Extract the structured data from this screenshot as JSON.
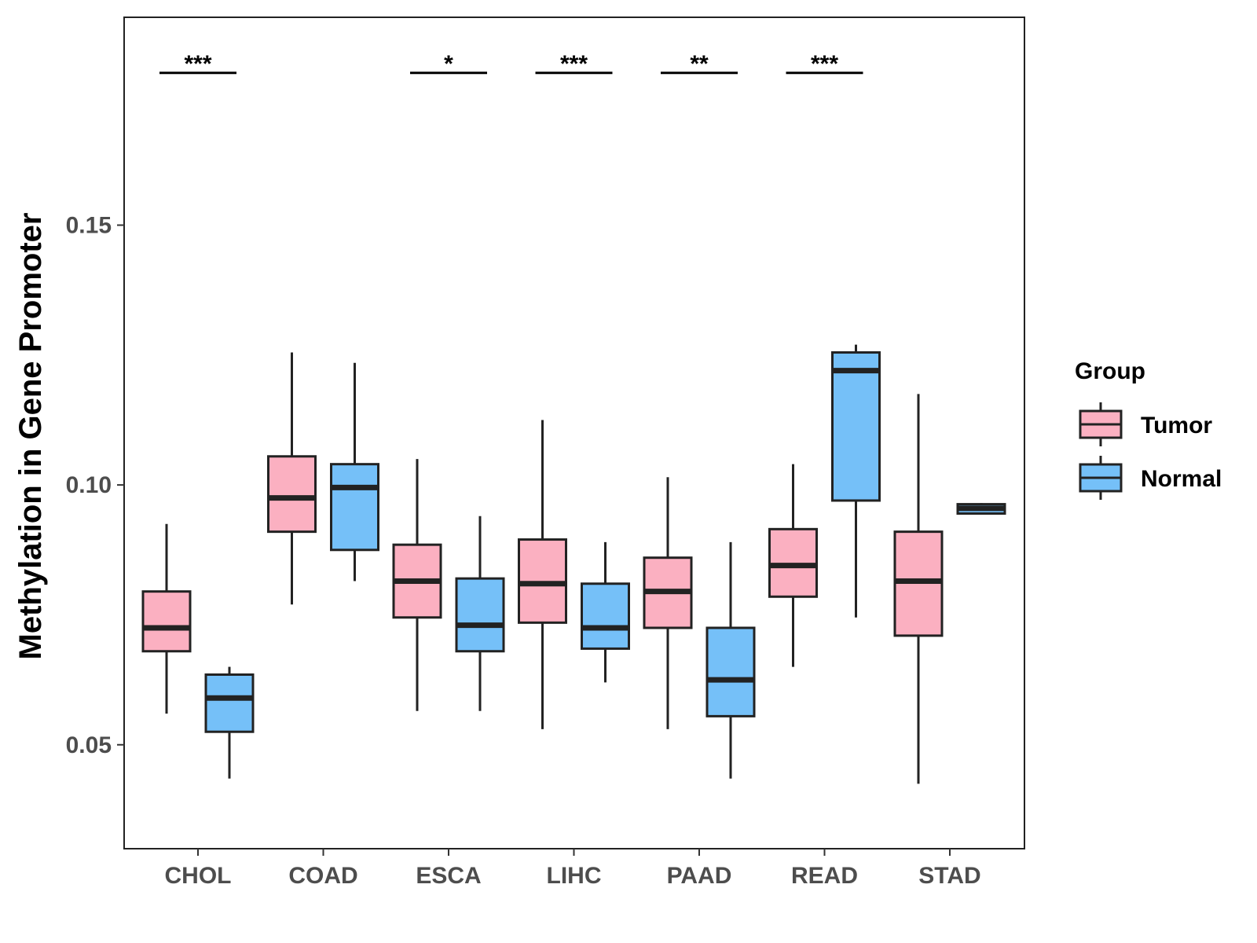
{
  "chart_data": {
    "type": "boxplot",
    "title": "",
    "xlabel": "",
    "ylabel": "Methylation in Gene Promoter",
    "ylim": [
      0.03,
      0.19
    ],
    "yticks": [
      0.05,
      0.1,
      0.15
    ],
    "ytick_labels": [
      "0.05",
      "0.10",
      "0.15"
    ],
    "grid": false,
    "categories": [
      "CHOL",
      "COAD",
      "ESCA",
      "LIHC",
      "PAAD",
      "READ",
      "STAD"
    ],
    "legend": {
      "title": "Group",
      "position": "right",
      "entries": [
        {
          "name": "Tumor",
          "color": "#FBB0C1"
        },
        {
          "name": "Normal",
          "color": "#75C0F8"
        }
      ]
    },
    "series": [
      {
        "name": "Tumor",
        "color": "#FBB0C1",
        "boxes": [
          {
            "category": "CHOL",
            "whisker_low": 0.056,
            "q1": 0.068,
            "median": 0.0725,
            "q3": 0.0795,
            "whisker_high": 0.0925
          },
          {
            "category": "COAD",
            "whisker_low": 0.077,
            "q1": 0.091,
            "median": 0.0975,
            "q3": 0.1055,
            "whisker_high": 0.1255
          },
          {
            "category": "ESCA",
            "whisker_low": 0.0565,
            "q1": 0.0745,
            "median": 0.0815,
            "q3": 0.0885,
            "whisker_high": 0.105
          },
          {
            "category": "LIHC",
            "whisker_low": 0.053,
            "q1": 0.0735,
            "median": 0.081,
            "q3": 0.0895,
            "whisker_high": 0.1125
          },
          {
            "category": "PAAD",
            "whisker_low": 0.053,
            "q1": 0.0725,
            "median": 0.0795,
            "q3": 0.086,
            "whisker_high": 0.1015
          },
          {
            "category": "READ",
            "whisker_low": 0.065,
            "q1": 0.0785,
            "median": 0.0845,
            "q3": 0.0915,
            "whisker_high": 0.104
          },
          {
            "category": "STAD",
            "whisker_low": 0.0425,
            "q1": 0.071,
            "median": 0.0815,
            "q3": 0.091,
            "whisker_high": 0.1175
          }
        ]
      },
      {
        "name": "Normal",
        "color": "#75C0F8",
        "boxes": [
          {
            "category": "CHOL",
            "whisker_low": 0.0435,
            "q1": 0.0525,
            "median": 0.059,
            "q3": 0.0635,
            "whisker_high": 0.065
          },
          {
            "category": "COAD",
            "whisker_low": 0.0815,
            "q1": 0.0875,
            "median": 0.0995,
            "q3": 0.104,
            "whisker_high": 0.1235
          },
          {
            "category": "ESCA",
            "whisker_low": 0.0565,
            "q1": 0.068,
            "median": 0.073,
            "q3": 0.082,
            "whisker_high": 0.094
          },
          {
            "category": "LIHC",
            "whisker_low": 0.062,
            "q1": 0.0685,
            "median": 0.0725,
            "q3": 0.081,
            "whisker_high": 0.089
          },
          {
            "category": "PAAD",
            "whisker_low": 0.0435,
            "q1": 0.0555,
            "median": 0.0625,
            "q3": 0.0725,
            "whisker_high": 0.089
          },
          {
            "category": "READ",
            "whisker_low": 0.0745,
            "q1": 0.097,
            "median": 0.122,
            "q3": 0.1255,
            "whisker_high": 0.127
          },
          {
            "category": "STAD",
            "whisker_low": 0.0945,
            "q1": 0.0945,
            "median": 0.0955,
            "q3": 0.0963,
            "whisker_high": 0.0965
          }
        ]
      }
    ],
    "significance": [
      {
        "category": "CHOL",
        "label": "***"
      },
      {
        "category": "ESCA",
        "label": "*"
      },
      {
        "category": "LIHC",
        "label": "***"
      },
      {
        "category": "PAAD",
        "label": "**"
      },
      {
        "category": "READ",
        "label": "***"
      }
    ],
    "significance_bar_value": 0.1793
  }
}
